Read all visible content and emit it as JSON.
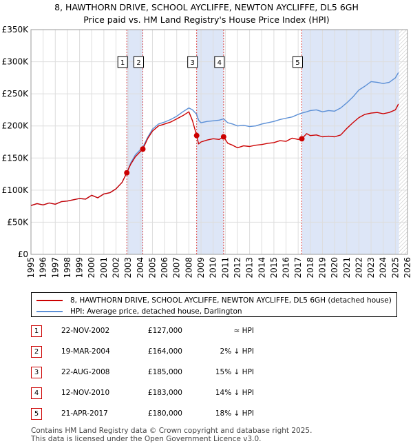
{
  "title_line1": "8, HAWTHORN DRIVE, SCHOOL AYCLIFFE, NEWTON AYCLIFFE, DL5 6GH",
  "title_line2": "Price paid vs. HM Land Registry's House Price Index (HPI)",
  "colors": {
    "property_line": "#cc0000",
    "hpi_line": "#5b8fd6",
    "shade": "#dde6f7",
    "marker_dash": "#dd4444",
    "grid": "#dddddd"
  },
  "legend": [
    {
      "label": "8, HAWTHORN DRIVE, SCHOOL AYCLIFFE, NEWTON AYCLIFFE, DL5 6GH (detached house)",
      "color": "#cc0000"
    },
    {
      "label": "HPI: Average price, detached house, Darlington",
      "color": "#5b8fd6"
    }
  ],
  "sales": [
    {
      "num": "1",
      "date": "22-NOV-2002",
      "price": "£127,000",
      "hpi": "≈ HPI"
    },
    {
      "num": "2",
      "date": "19-MAR-2004",
      "price": "£164,000",
      "hpi": "2% ↓ HPI"
    },
    {
      "num": "3",
      "date": "22-AUG-2008",
      "price": "£185,000",
      "hpi": "15% ↓ HPI"
    },
    {
      "num": "4",
      "date": "12-NOV-2010",
      "price": "£183,000",
      "hpi": "14% ↓ HPI"
    },
    {
      "num": "5",
      "date": "21-APR-2017",
      "price": "£180,000",
      "hpi": "18% ↓ HPI"
    }
  ],
  "footer_line1": "Contains HM Land Registry data © Crown copyright and database right 2025.",
  "footer_line2": "This data is licensed under the Open Government Licence v3.0.",
  "chart_data": {
    "type": "line",
    "title": "8, HAWTHORN DRIVE, SCHOOL AYCLIFFE, NEWTON AYCLIFFE, DL5 6GH",
    "subtitle": "Price paid vs. HM Land Registry's House Price Index (HPI)",
    "xlabel": "",
    "ylabel": "",
    "xlim": [
      1995,
      2026
    ],
    "ylim": [
      0,
      350000
    ],
    "x_ticks": [
      1995,
      1996,
      1997,
      1998,
      1999,
      2000,
      2001,
      2002,
      2003,
      2004,
      2005,
      2006,
      2007,
      2008,
      2009,
      2010,
      2011,
      2012,
      2013,
      2014,
      2015,
      2016,
      2017,
      2018,
      2019,
      2020,
      2021,
      2022,
      2023,
      2024,
      2025,
      2026
    ],
    "y_ticks": [
      {
        "value": 0,
        "label": "£0"
      },
      {
        "value": 50000,
        "label": "£50K"
      },
      {
        "value": 100000,
        "label": "£100K"
      },
      {
        "value": 150000,
        "label": "£150K"
      },
      {
        "value": 200000,
        "label": "£200K"
      },
      {
        "value": 250000,
        "label": "£250K"
      },
      {
        "value": 300000,
        "label": "£300K"
      },
      {
        "value": 350000,
        "label": "£350K"
      }
    ],
    "grid": true,
    "shaded_ranges": [
      [
        2002.89,
        2004.21
      ],
      [
        2008.64,
        2010.86
      ],
      [
        2017.3,
        2025.3
      ]
    ],
    "hatched_range": [
      2025.3,
      2026
    ],
    "sale_markers": [
      {
        "label": "1",
        "x": 2002.89,
        "y": 127000
      },
      {
        "label": "2",
        "x": 2004.21,
        "y": 164000
      },
      {
        "label": "3",
        "x": 2008.64,
        "y": 185000
      },
      {
        "label": "4",
        "x": 2010.86,
        "y": 183000
      },
      {
        "label": "5",
        "x": 2017.3,
        "y": 180000
      }
    ],
    "series": [
      {
        "name": "8, HAWTHORN DRIVE, SCHOOL AYCLIFFE, NEWTON AYCLIFFE, DL5 6GH (detached house)",
        "color": "#cc0000",
        "x": [
          1995.0,
          1995.5,
          1996.0,
          1996.5,
          1997.0,
          1997.5,
          1998.0,
          1998.5,
          1999.0,
          1999.5,
          2000.0,
          2000.5,
          2001.0,
          2001.5,
          2002.0,
          2002.5,
          2002.89,
          2003.2,
          2003.6,
          2004.0,
          2004.21,
          2004.6,
          2005.0,
          2005.5,
          2006.0,
          2006.5,
          2007.0,
          2007.5,
          2008.0,
          2008.3,
          2008.64,
          2008.8,
          2009.0,
          2009.5,
          2010.0,
          2010.5,
          2010.86,
          2011.2,
          2011.6,
          2012.0,
          2012.5,
          2013.0,
          2013.5,
          2014.0,
          2014.5,
          2015.0,
          2015.5,
          2016.0,
          2016.5,
          2017.0,
          2017.3,
          2017.7,
          2018.0,
          2018.5,
          2019.0,
          2019.5,
          2020.0,
          2020.5,
          2021.0,
          2021.5,
          2022.0,
          2022.5,
          2023.0,
          2023.5,
          2024.0,
          2024.5,
          2025.0,
          2025.25
        ],
        "values": [
          76000,
          79000,
          77000,
          80000,
          78000,
          82000,
          83000,
          85000,
          87000,
          86000,
          92000,
          88000,
          94000,
          96000,
          102000,
          112000,
          127000,
          140000,
          152000,
          160000,
          164000,
          180000,
          192000,
          200000,
          203000,
          206000,
          211000,
          216000,
          222000,
          208000,
          185000,
          172000,
          175000,
          178000,
          180000,
          179000,
          183000,
          173000,
          170000,
          166000,
          169000,
          168000,
          170000,
          171000,
          173000,
          174000,
          177000,
          176000,
          181000,
          179000,
          180000,
          188000,
          185000,
          186000,
          183000,
          184000,
          183000,
          186000,
          196000,
          205000,
          213000,
          218000,
          220000,
          221000,
          219000,
          221000,
          225000,
          234000
        ]
      },
      {
        "name": "HPI: Average price, detached house, Darlington",
        "color": "#5b8fd6",
        "x": [
          1995.0,
          1995.5,
          1996.0,
          1996.5,
          1997.0,
          1997.5,
          1998.0,
          1998.5,
          1999.0,
          1999.5,
          2000.0,
          2000.5,
          2001.0,
          2001.5,
          2002.0,
          2002.5,
          2002.89,
          2003.2,
          2003.6,
          2004.0,
          2004.21,
          2004.6,
          2005.0,
          2005.5,
          2006.0,
          2006.5,
          2007.0,
          2007.5,
          2008.0,
          2008.3,
          2008.64,
          2008.8,
          2009.0,
          2009.5,
          2010.0,
          2010.5,
          2010.86,
          2011.2,
          2011.6,
          2012.0,
          2012.5,
          2013.0,
          2013.5,
          2014.0,
          2014.5,
          2015.0,
          2015.5,
          2016.0,
          2016.5,
          2017.0,
          2017.3,
          2017.7,
          2018.0,
          2018.5,
          2019.0,
          2019.5,
          2020.0,
          2020.5,
          2021.0,
          2021.5,
          2022.0,
          2022.5,
          2023.0,
          2023.5,
          2024.0,
          2024.5,
          2025.0,
          2025.25
        ],
        "values": [
          76000,
          79000,
          77000,
          80000,
          78000,
          82000,
          83000,
          85000,
          87000,
          86000,
          92000,
          88000,
          94000,
          96000,
          102000,
          112000,
          127000,
          142000,
          155000,
          163000,
          167000,
          182000,
          195000,
          203000,
          206000,
          210000,
          215000,
          222000,
          228000,
          225000,
          218000,
          209000,
          205000,
          207000,
          208000,
          209000,
          211000,
          205000,
          203000,
          200000,
          201000,
          199000,
          200000,
          203000,
          205000,
          207000,
          210000,
          212000,
          214000,
          218000,
          220000,
          222000,
          224000,
          225000,
          222000,
          224000,
          223000,
          228000,
          236000,
          245000,
          256000,
          262000,
          269000,
          268000,
          266000,
          268000,
          275000,
          283000
        ]
      }
    ]
  }
}
